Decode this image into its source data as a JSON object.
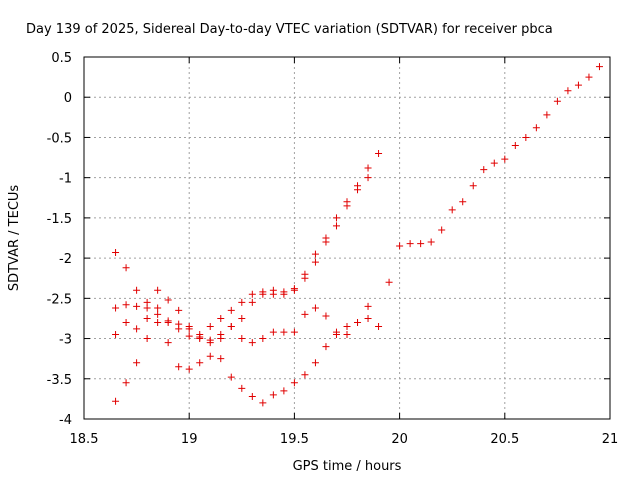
{
  "chart_data": {
    "type": "scatter",
    "title": "Day 139 of 2025, Sidereal Day-to-day VTEC variation (SDTVAR) for receiver pbca",
    "xlabel": "GPS time / hours",
    "ylabel": "SDTVAR / TECUs",
    "xlim": [
      18.5,
      21
    ],
    "ylim": [
      -4,
      0.5
    ],
    "grid": true,
    "marker": "+",
    "color": "#e00000",
    "x_ticks": [
      {
        "v": 18.5,
        "label": "18.5"
      },
      {
        "v": 19,
        "label": "19"
      },
      {
        "v": 19.5,
        "label": "19.5"
      },
      {
        "v": 20,
        "label": "20"
      },
      {
        "v": 20.5,
        "label": "20.5"
      },
      {
        "v": 21,
        "label": "21"
      }
    ],
    "y_ticks": [
      {
        "v": 0.5,
        "label": "0.5"
      },
      {
        "v": 0,
        "label": "0"
      },
      {
        "v": -0.5,
        "label": "-0.5"
      },
      {
        "v": -1,
        "label": "-1"
      },
      {
        "v": -1.5,
        "label": "-1.5"
      },
      {
        "v": -2,
        "label": "-2"
      },
      {
        "v": -2.5,
        "label": "-2.5"
      },
      {
        "v": -3,
        "label": "-3"
      },
      {
        "v": -3.5,
        "label": "-3.5"
      },
      {
        "v": -4,
        "label": "-4"
      }
    ],
    "series": [
      {
        "x": [
          18.65,
          18.7,
          18.75,
          18.8,
          18.85,
          18.9,
          18.95,
          19.0,
          19.05,
          19.1,
          19.15,
          19.2,
          19.25,
          19.3,
          19.35,
          19.4,
          19.45,
          19.5,
          19.55,
          19.6,
          19.65,
          19.7,
          19.75,
          19.8,
          19.85,
          19.9
        ],
        "values": [
          -1.93,
          -2.12,
          -2.4,
          -2.55,
          -2.7,
          -2.8,
          -2.88,
          -2.97,
          -2.95,
          -2.85,
          -2.75,
          -2.65,
          -2.55,
          -2.45,
          -2.42,
          -2.4,
          -2.42,
          -2.38,
          -2.2,
          -1.95,
          -1.75,
          -1.5,
          -1.3,
          -1.1,
          -0.88,
          -0.7
        ]
      },
      {
        "x": [
          18.65,
          18.7,
          18.75,
          18.8,
          18.85,
          18.9,
          18.95,
          19.0,
          19.05,
          19.1,
          19.15,
          19.2,
          19.25,
          19.3,
          19.35,
          19.4,
          19.45,
          19.5,
          19.55,
          19.6,
          19.65,
          19.7,
          19.75,
          19.8,
          19.85,
          19.9,
          19.95,
          20.0,
          20.05,
          20.1,
          20.15,
          20.2,
          20.25,
          20.3,
          20.35,
          20.4,
          20.45,
          20.5,
          20.55,
          20.6,
          20.65,
          20.7,
          20.75,
          20.8,
          20.85,
          20.9,
          20.95
        ],
        "values": [
          -3.78,
          -3.55,
          -3.3,
          -3.0,
          -2.4,
          -2.52,
          -2.65,
          -2.85,
          -3.0,
          -3.05,
          -3.0,
          -2.85,
          -2.75,
          -2.55,
          -2.45,
          -2.45,
          -2.45,
          -2.4,
          -2.25,
          -2.05,
          -1.8,
          -1.6,
          -1.35,
          -1.15,
          -1.0,
          -2.85,
          -2.3,
          -1.85,
          -1.82,
          -1.82,
          -1.8,
          -1.65,
          -1.4,
          -1.3,
          -1.1,
          -0.9,
          -0.82,
          -0.77,
          -0.6,
          -0.5,
          -0.38,
          -0.22,
          -0.05,
          0.08,
          0.15,
          0.25,
          0.38
        ]
      },
      {
        "x": [
          18.65,
          18.7,
          18.75,
          18.8,
          18.85,
          18.9,
          18.95,
          19.0,
          19.05,
          19.1,
          19.15,
          19.2,
          19.25,
          19.3,
          19.35,
          19.4,
          19.45,
          19.5,
          19.55,
          19.6,
          19.65,
          19.7,
          19.75,
          19.8,
          19.85
        ],
        "values": [
          -2.95,
          -2.8,
          -2.88,
          -2.75,
          -2.62,
          -2.78,
          -2.82,
          -2.88,
          -2.98,
          -3.02,
          -2.95,
          -2.85,
          -3.0,
          -3.05,
          -3.0,
          -2.92,
          -2.92,
          -2.92,
          -2.7,
          -2.62,
          -2.72,
          -2.92,
          -2.95,
          -2.8,
          -2.6
        ]
      },
      {
        "x": [
          18.65,
          18.7,
          18.75,
          18.8,
          18.85,
          18.9,
          18.95,
          19.0,
          19.05,
          19.1,
          19.15,
          19.2,
          19.25,
          19.3,
          19.35,
          19.4,
          19.45,
          19.5,
          19.55,
          19.6,
          19.65,
          19.7,
          19.75,
          19.8,
          19.85
        ],
        "values": [
          -2.62,
          -2.58,
          -2.6,
          -2.62,
          -2.8,
          -3.05,
          -3.35,
          -3.38,
          -3.3,
          -3.22,
          -3.25,
          -3.48,
          -3.62,
          -3.72,
          -3.8,
          -3.7,
          -3.65,
          -3.55,
          -3.45,
          -3.3,
          -3.1,
          -2.95,
          -2.85,
          -2.8,
          -2.75
        ]
      }
    ]
  }
}
